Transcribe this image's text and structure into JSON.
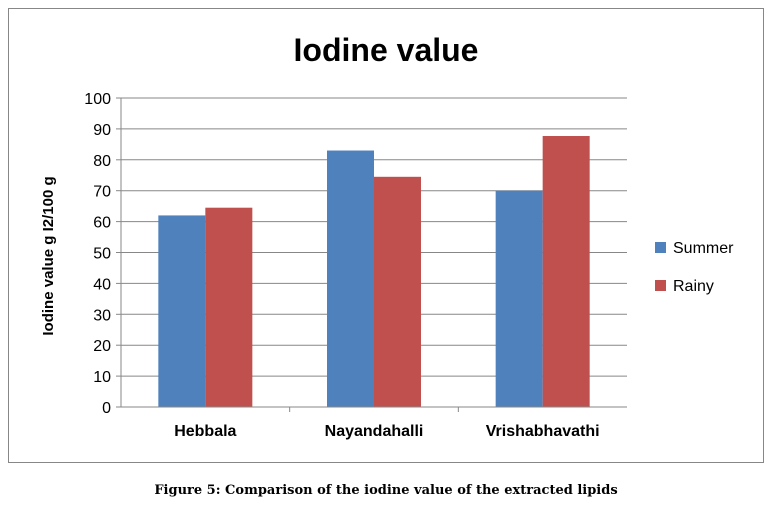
{
  "chart_data": {
    "type": "bar",
    "title": "Iodine value",
    "xlabel": "",
    "ylabel": "Iodine value g I2/100 g",
    "categories": [
      "Hebbala",
      "Nayandahalli",
      "Vrishabhavathi"
    ],
    "series": [
      {
        "name": "Summer",
        "values": [
          62,
          83,
          70
        ]
      },
      {
        "name": "Rainy",
        "values": [
          64.5,
          74.5,
          87.7
        ]
      }
    ],
    "ylim": [
      0,
      100
    ],
    "yticks": [
      "0",
      "10",
      "20",
      "30",
      "40",
      "50",
      "60",
      "70",
      "80",
      "90",
      "100"
    ],
    "grid": true,
    "legend": "right",
    "colors": {
      "Summer": "#4f81bd",
      "Rainy": "#c0504d"
    }
  },
  "caption": "Figure 5: Comparison of the iodine value of the extracted lipids"
}
